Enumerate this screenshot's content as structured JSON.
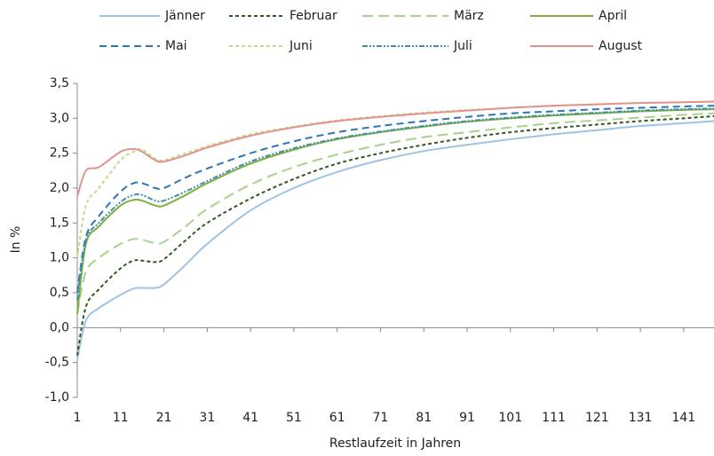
{
  "chart_data": {
    "type": "line",
    "x_label": "Restlaufzeit in Jahren",
    "y_label": "In %",
    "x": [
      1,
      3,
      6,
      11,
      14,
      16,
      19,
      21,
      26,
      31,
      41,
      51,
      61,
      71,
      81,
      91,
      101,
      111,
      121,
      131,
      141,
      148
    ],
    "xlim": [
      1,
      148
    ],
    "xticks": [
      1,
      11,
      21,
      31,
      41,
      51,
      61,
      71,
      81,
      91,
      101,
      111,
      121,
      131,
      141
    ],
    "ylim": [
      -1,
      3.5
    ],
    "yticks": [
      {
        "value": -1,
        "label": "-1,0"
      },
      {
        "value": -0.5,
        "label": "-0,5"
      },
      {
        "value": 0,
        "label": "0,0"
      },
      {
        "value": 0.5,
        "label": "0,5"
      },
      {
        "value": 1,
        "label": "1,0"
      },
      {
        "value": 1.5,
        "label": "1,5"
      },
      {
        "value": 2,
        "label": "2,0"
      },
      {
        "value": 2.5,
        "label": "2,5"
      },
      {
        "value": 3,
        "label": "3,0"
      },
      {
        "value": 3.5,
        "label": "3,5"
      }
    ],
    "grid": false,
    "legend": "top",
    "series": [
      {
        "name": "Jänner",
        "color": "#9dc3e6",
        "dash": "none",
        "values": [
          -0.45,
          0.1,
          0.28,
          0.47,
          0.56,
          0.57,
          0.57,
          0.62,
          0.9,
          1.2,
          1.68,
          2.0,
          2.23,
          2.4,
          2.53,
          2.62,
          2.7,
          2.77,
          2.83,
          2.89,
          2.93,
          2.96
        ]
      },
      {
        "name": "Februar",
        "color": "#375623",
        "dash": "4 3",
        "values": [
          -0.4,
          0.3,
          0.55,
          0.85,
          0.96,
          0.96,
          0.94,
          0.98,
          1.25,
          1.5,
          1.85,
          2.13,
          2.35,
          2.5,
          2.62,
          2.72,
          2.8,
          2.86,
          2.91,
          2.96,
          3.0,
          3.03
        ]
      },
      {
        "name": "März",
        "color": "#a9d18e",
        "dash": "12 6",
        "values": [
          0.2,
          0.8,
          1.0,
          1.2,
          1.27,
          1.26,
          1.21,
          1.23,
          1.45,
          1.7,
          2.05,
          2.3,
          2.48,
          2.62,
          2.73,
          2.8,
          2.87,
          2.93,
          2.97,
          3.01,
          3.05,
          3.07
        ]
      },
      {
        "name": "April",
        "color": "#7fae3e",
        "dash": "none",
        "values": [
          0.2,
          1.2,
          1.45,
          1.75,
          1.83,
          1.82,
          1.75,
          1.75,
          1.9,
          2.07,
          2.35,
          2.55,
          2.7,
          2.8,
          2.88,
          2.95,
          3.0,
          3.04,
          3.07,
          3.1,
          3.12,
          3.13
        ]
      },
      {
        "name": "Mai",
        "color": "#2e75b6",
        "dash": "8 5",
        "values": [
          0.5,
          1.3,
          1.6,
          1.95,
          2.07,
          2.07,
          2.0,
          2.0,
          2.15,
          2.28,
          2.5,
          2.67,
          2.8,
          2.89,
          2.96,
          3.02,
          3.07,
          3.1,
          3.13,
          3.15,
          3.17,
          3.18
        ]
      },
      {
        "name": "Juni",
        "color": "#c2dc8a",
        "dash": "4 3",
        "values": [
          1.0,
          1.75,
          2.0,
          2.4,
          2.52,
          2.55,
          2.42,
          2.4,
          2.5,
          2.6,
          2.77,
          2.88,
          2.97,
          3.03,
          3.08,
          3.12,
          3.15,
          3.18,
          3.2,
          3.22,
          3.23,
          3.24
        ]
      },
      {
        "name": "Juli",
        "color": "#3f8fa8",
        "dash": "6 2 2 2 2 2",
        "values": [
          0.4,
          1.25,
          1.5,
          1.8,
          1.9,
          1.9,
          1.82,
          1.82,
          1.95,
          2.1,
          2.38,
          2.57,
          2.71,
          2.81,
          2.89,
          2.96,
          3.01,
          3.05,
          3.08,
          3.11,
          3.13,
          3.14
        ]
      },
      {
        "name": "August",
        "color": "#e3928d",
        "dash": "none",
        "values": [
          1.88,
          2.25,
          2.3,
          2.52,
          2.56,
          2.52,
          2.4,
          2.38,
          2.47,
          2.58,
          2.75,
          2.87,
          2.96,
          3.02,
          3.07,
          3.11,
          3.15,
          3.18,
          3.2,
          3.22,
          3.23,
          3.24
        ]
      }
    ]
  }
}
